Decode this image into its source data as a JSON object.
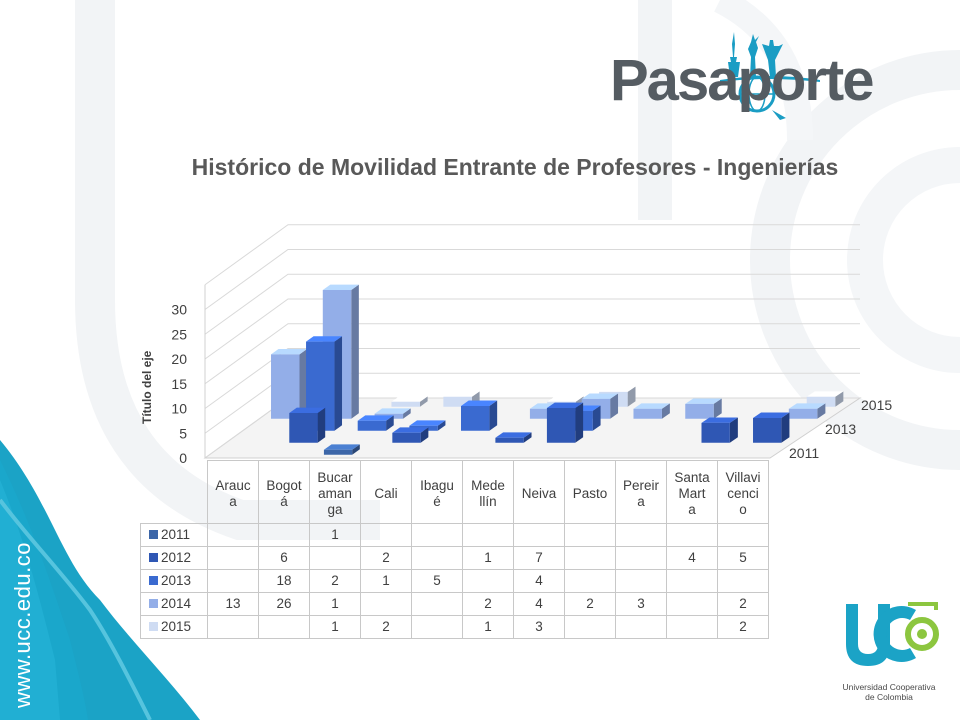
{
  "brand": {
    "name": "Pasaporte"
  },
  "footer": {
    "url": "www.ucc.edu.co"
  },
  "institution": {
    "line1": "Universidad Cooperativa",
    "line2": "de Colombia"
  },
  "colors": {
    "teal": "#1ba3c6",
    "tealDark": "#0b8fb3",
    "green": "#8cc63f",
    "gray": "#555c62",
    "s2011": "#3c66a8",
    "s2012": "#2f57b4",
    "s2013": "#3a6ad0",
    "s2014": "#93aee8",
    "s2015": "#cfdcf3"
  },
  "chart_data": {
    "type": "bar",
    "title": "Histórico de Movilidad Entrante de Profesores - Ingenierías",
    "ylabel": "Título del eje",
    "ylim": [
      0,
      30
    ],
    "yticks": [
      0,
      5,
      10,
      15,
      20,
      25,
      30
    ],
    "categories": [
      "Arauca",
      "Bogotá",
      "Bucaramanga",
      "Cali",
      "Ibagué",
      "Medellín",
      "Neiva",
      "Pasto",
      "Pereira",
      "Santa Marta",
      "Villavicencio"
    ],
    "category_labels": [
      [
        "Arauc",
        "a"
      ],
      [
        "Bogot",
        "á"
      ],
      [
        "Bucar",
        "aman",
        "ga"
      ],
      [
        "Cali"
      ],
      [
        "Ibagu",
        "é"
      ],
      [
        "Mede",
        "llín"
      ],
      [
        "Neiva"
      ],
      [
        "Pasto"
      ],
      [
        "Pereir",
        "a"
      ],
      [
        "Santa",
        "Mart",
        "a"
      ],
      [
        "Villavi",
        "cenci",
        "o"
      ]
    ],
    "series": [
      {
        "name": "2011",
        "values": [
          null,
          null,
          1,
          null,
          null,
          null,
          null,
          null,
          null,
          null,
          null
        ]
      },
      {
        "name": "2012",
        "values": [
          null,
          6,
          null,
          2,
          null,
          1,
          7,
          null,
          null,
          4,
          5
        ]
      },
      {
        "name": "2013",
        "values": [
          null,
          18,
          2,
          1,
          5,
          null,
          4,
          null,
          null,
          null,
          null
        ]
      },
      {
        "name": "2014",
        "values": [
          13,
          26,
          1,
          null,
          null,
          2,
          4,
          2,
          3,
          null,
          2
        ]
      },
      {
        "name": "2015",
        "values": [
          null,
          null,
          1,
          2,
          null,
          1,
          3,
          null,
          null,
          null,
          2
        ]
      }
    ],
    "depth_axis_labels": [
      "2015",
      "2013",
      "2011"
    ],
    "grid": true,
    "data_table": true
  }
}
